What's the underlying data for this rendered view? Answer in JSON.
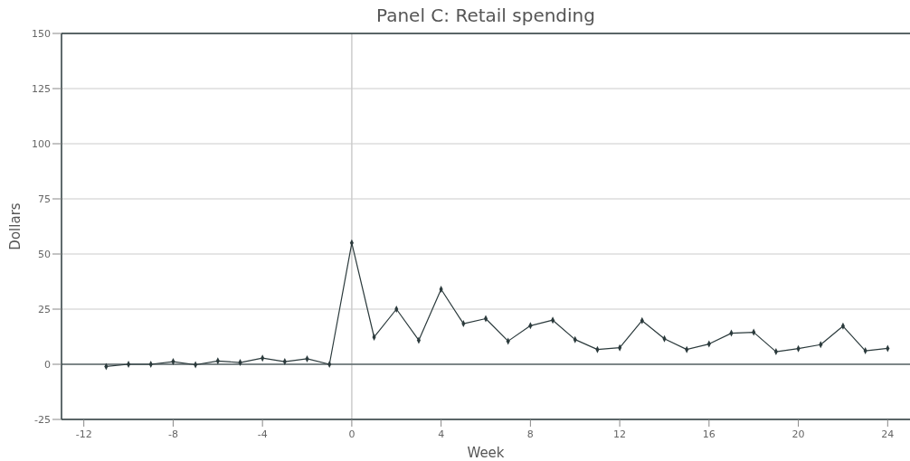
{
  "chart_data": {
    "type": "line",
    "title": "Panel C: Retail spending",
    "xlabel": "Week",
    "ylabel": "Dollars",
    "x": [
      -11,
      -10,
      -9,
      -8,
      -7,
      -6,
      -5,
      -4,
      -3,
      -2,
      -1,
      0,
      1,
      2,
      3,
      4,
      5,
      6,
      7,
      8,
      9,
      10,
      11,
      12,
      13,
      14,
      15,
      16,
      17,
      18,
      19,
      20,
      21,
      22,
      23,
      24
    ],
    "series": [
      {
        "color": "#2b3a3c",
        "values": [
          -1,
          0,
          0,
          1.2,
          -0.2,
          1.5,
          0.8,
          2.8,
          1.2,
          2.5,
          0,
          55,
          12.3,
          25,
          10.9,
          34,
          18.4,
          20.7,
          10.5,
          17.5,
          20,
          11.2,
          6.7,
          7.5,
          19.8,
          11.6,
          6.7,
          9.2,
          14.1,
          14.5,
          5.7,
          7.1,
          8.9,
          17.3,
          6.1,
          7.2
        ]
      }
    ],
    "xlim": [
      -13,
      25
    ],
    "xticks": [
      -12,
      -8,
      -4,
      0,
      4,
      8,
      12,
      16,
      20,
      24
    ],
    "ylim": [
      -25,
      150
    ],
    "yticks": [
      -25,
      0,
      25,
      50,
      75,
      100,
      125,
      150
    ],
    "grid": "y",
    "marker": "diamond",
    "line_style": "solid",
    "ref_lines": [
      {
        "axis": "x",
        "value": 0,
        "color": "#cccccc"
      },
      {
        "axis": "y",
        "value": 0,
        "color": "#5a6668"
      }
    ]
  }
}
